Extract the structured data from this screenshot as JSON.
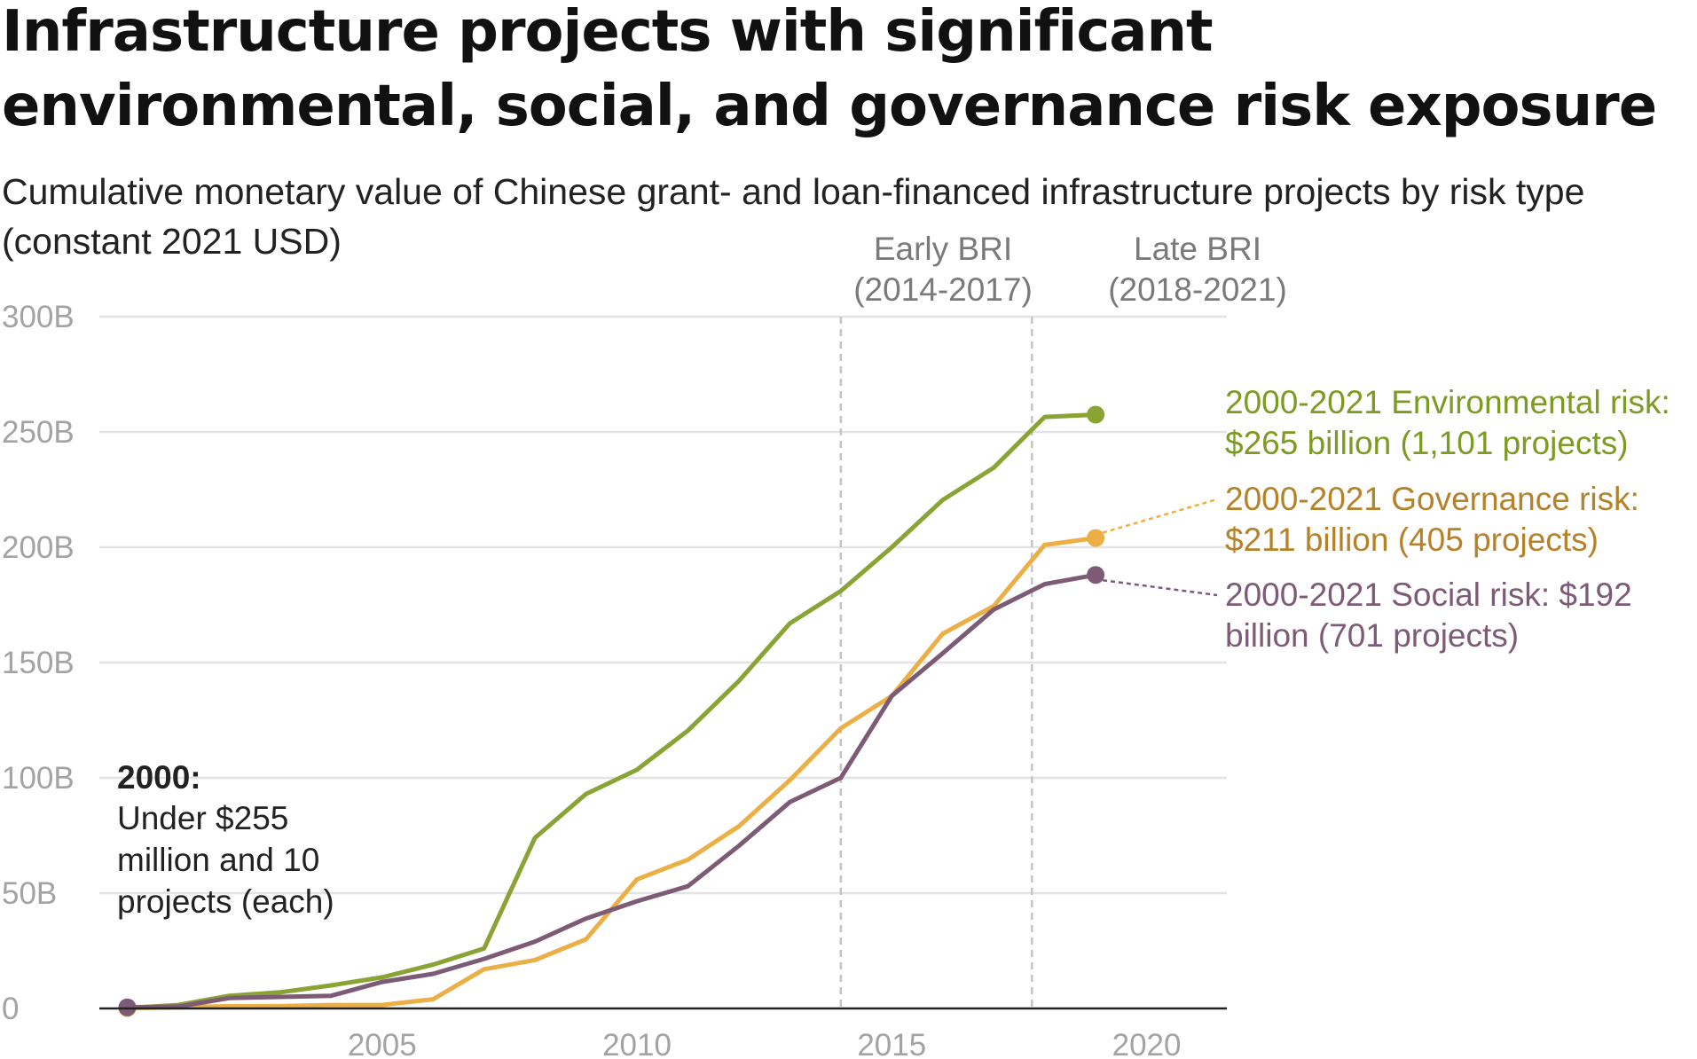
{
  "title": "Infrastructure projects with significant environmental, social, and governance risk exposure",
  "subtitle": "Cumulative monetary value of Chinese grant- and loan-financed infrastructure projects by risk type (constant 2021 USD)",
  "colors": {
    "environmental": "#8aa335",
    "governance": "#ebaf45",
    "social": "#7d5b77",
    "grid": "#e3e3e3",
    "tick_text": "#a3a3a3",
    "period_line": "#c4c4c4"
  },
  "chart_data": {
    "type": "line",
    "title": "Infrastructure projects with significant environmental, social, and governance risk exposure",
    "subtitle": "Cumulative monetary value of Chinese grant- and loan-financed infrastructure projects by risk type (constant 2021 USD)",
    "xlabel": "",
    "ylabel": "",
    "x": [
      2000,
      2001,
      2002,
      2003,
      2004,
      2005,
      2006,
      2007,
      2008,
      2009,
      2010,
      2011,
      2012,
      2013,
      2014,
      2015,
      2016,
      2017,
      2018,
      2019,
      2020,
      2021
    ],
    "xlim": [
      2000,
      2021
    ],
    "ylim": [
      0,
      300
    ],
    "y_unit": "billion USD (constant 2021)",
    "x_ticks": [
      {
        "value": 2005,
        "label": "2005"
      },
      {
        "value": 2010,
        "label": "2010"
      },
      {
        "value": 2015,
        "label": "2015"
      },
      {
        "value": 2020,
        "label": "2020"
      }
    ],
    "y_ticks": [
      {
        "value": 0,
        "label": "0"
      },
      {
        "value": 50,
        "label": "50B"
      },
      {
        "value": 100,
        "label": "100B"
      },
      {
        "value": 150,
        "label": "150B"
      },
      {
        "value": 200,
        "label": "200B"
      },
      {
        "value": 250,
        "label": "250B"
      },
      {
        "value": 300,
        "label": "300B"
      }
    ],
    "grid": true,
    "series": [
      {
        "key": "environmental",
        "color": "#8aa335",
        "values": [
          0.2,
          1.5,
          5.5,
          7.0,
          10.0,
          13.5,
          19.0,
          26.0,
          74.0,
          93.0,
          103.5,
          120.5,
          142.0,
          167.0,
          181.0,
          200.0,
          220.5,
          234.5,
          256.5,
          257.5,
          null,
          null
        ],
        "end_label_lines": [
          "2000-2021 Environmental risk:",
          "$265 billion (1,101 projects)"
        ]
      },
      {
        "key": "governance",
        "color": "#ebaf45",
        "values": [
          0.2,
          0.5,
          1.0,
          1.0,
          1.5,
          1.5,
          4.0,
          17.0,
          21.0,
          30.0,
          56.0,
          64.5,
          79.0,
          99.0,
          121.5,
          135.5,
          162.5,
          174.5,
          201.0,
          204.0,
          null,
          null
        ],
        "end_label_lines": [
          "2000-2021 Governance risk:",
          "$211 billion (405 projects)"
        ]
      },
      {
        "key": "social",
        "color": "#7d5b77",
        "values": [
          0.5,
          0.8,
          4.5,
          5.0,
          5.5,
          11.5,
          15.0,
          21.5,
          29.0,
          39.0,
          46.5,
          53.0,
          70.5,
          89.5,
          100.0,
          135.5,
          154.0,
          173.0,
          184.0,
          188.0,
          null,
          null
        ],
        "end_label_lines": [
          "2000-2021 Social risk: $192",
          "billion (701 projects)"
        ]
      }
    ],
    "periods": [
      {
        "start": 2014,
        "end": 2017,
        "label_lines": [
          "Early BRI",
          "(2014-2017)"
        ]
      },
      {
        "start": 2018,
        "end": 2021,
        "label_lines": [
          "Late BRI",
          "(2018-2021)"
        ]
      }
    ],
    "annotation": {
      "heading": "2000:",
      "lines": [
        "Under $255",
        "million and 10",
        "projects (each)"
      ]
    }
  }
}
